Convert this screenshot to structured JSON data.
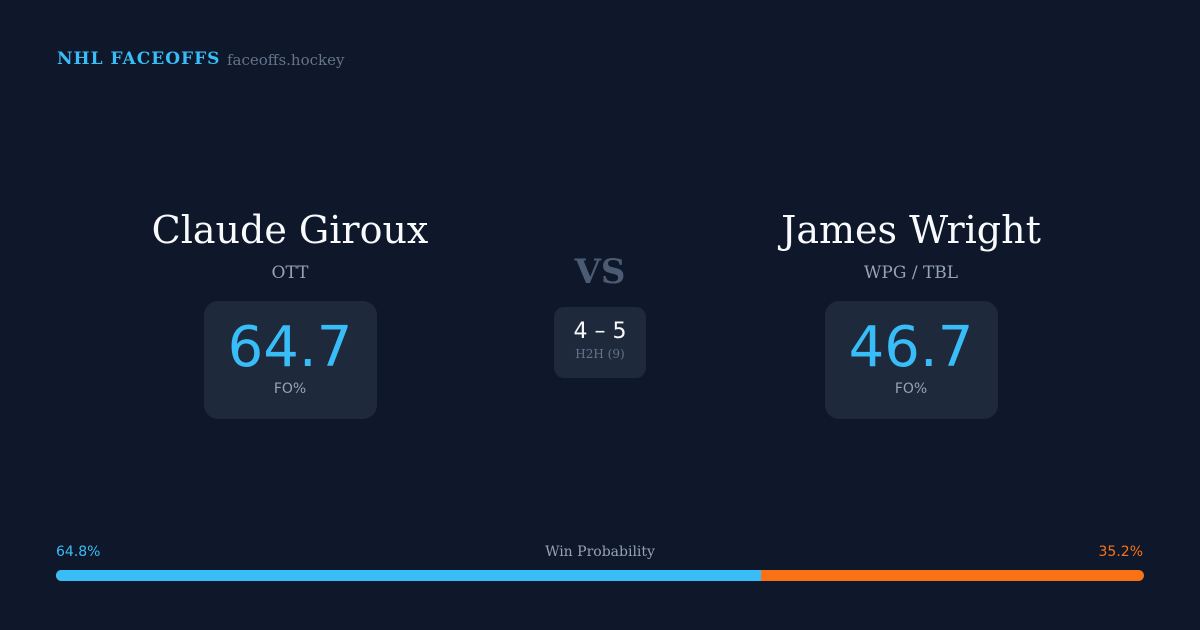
{
  "header": {
    "brand": "NHL FACEOFFS",
    "site": "faceoffs.hockey"
  },
  "players": [
    {
      "name": "Claude Giroux",
      "team": "OTT",
      "fo_pct": "64.7",
      "fo_label": "FO%"
    },
    {
      "name": "James Wright",
      "team": "WPG / TBL",
      "fo_pct": "46.7",
      "fo_label": "FO%"
    }
  ],
  "matchup": {
    "vs": "VS",
    "h2h_score": "4 – 5",
    "h2h_label": "H2H (9)"
  },
  "win_probability": {
    "label": "Win Probability",
    "left": "64.8%",
    "right": "35.2%",
    "left_value": 64.8,
    "colors": {
      "left": "#38bdf8",
      "right": "#f97316"
    }
  }
}
